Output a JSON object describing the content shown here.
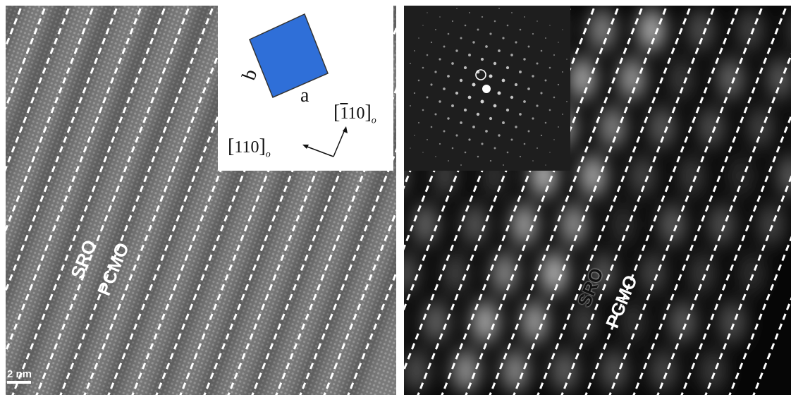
{
  "left_panel": {
    "labels": {
      "sro": "SRO",
      "pcmo": "PCMO"
    },
    "scale_bar": "2 nm"
  },
  "inset": {
    "axis_b": "b",
    "axis_a": "a",
    "dir_1_bracket_open": "[",
    "dir_1_digits": "110",
    "dir_1_bracket_close": "]",
    "dir_1_sub": "o",
    "dir_2_bracket_open": "[",
    "dir_2_bar_digit": "1",
    "dir_2_rest": "10",
    "dir_2_bracket_close": "]",
    "dir_2_sub": "o",
    "crystal_color": "#2f6fd8"
  },
  "right_panel": {
    "labels": {
      "sro": "SRO",
      "pcmo": "PCMO"
    }
  }
}
